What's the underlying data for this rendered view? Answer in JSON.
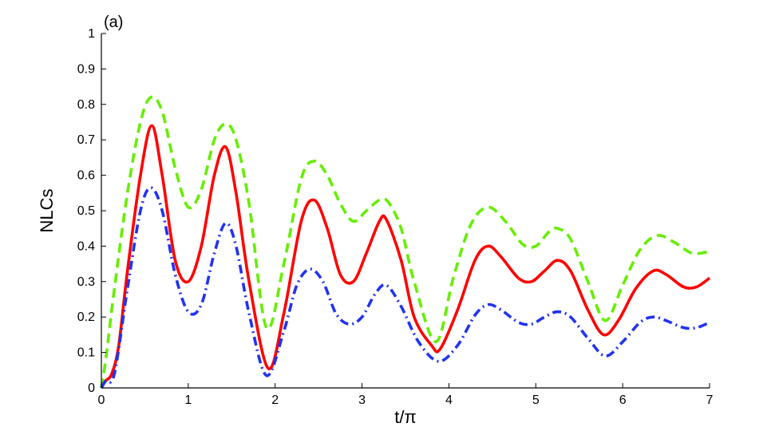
{
  "chart_data": {
    "type": "line",
    "panel_label": "(a)",
    "xlabel": "t/π",
    "ylabel": "NLCs",
    "xlim": [
      0,
      7
    ],
    "ylim": [
      0,
      1
    ],
    "x_ticks": [
      "0",
      "1",
      "2",
      "3",
      "4",
      "5",
      "6",
      "7"
    ],
    "y_ticks": [
      "0",
      "0.1",
      "0.2",
      "0.3",
      "0.4",
      "0.5",
      "0.6",
      "0.7",
      "0.8",
      "0.9",
      "1"
    ],
    "grid": false,
    "legend": "none",
    "series": [
      {
        "color": "#66ee00",
        "style": "dashed",
        "x": [
          0,
          0.05,
          0.15,
          0.3,
          0.45,
          0.57,
          0.7,
          0.85,
          1.0,
          1.15,
          1.3,
          1.43,
          1.55,
          1.7,
          1.9,
          2.1,
          2.3,
          2.45,
          2.6,
          2.75,
          2.9,
          3.05,
          3.2,
          3.3,
          3.45,
          3.6,
          3.85,
          4.05,
          4.25,
          4.45,
          4.65,
          4.85,
          5.0,
          5.15,
          5.25,
          5.4,
          5.6,
          5.8,
          6.0,
          6.2,
          6.4,
          6.6,
          6.8,
          7.0
        ],
        "values": [
          0.0,
          0.08,
          0.28,
          0.55,
          0.75,
          0.82,
          0.78,
          0.62,
          0.51,
          0.56,
          0.7,
          0.745,
          0.7,
          0.52,
          0.17,
          0.35,
          0.59,
          0.64,
          0.6,
          0.52,
          0.47,
          0.5,
          0.53,
          0.525,
          0.45,
          0.3,
          0.13,
          0.31,
          0.46,
          0.51,
          0.47,
          0.405,
          0.4,
          0.44,
          0.45,
          0.42,
          0.3,
          0.19,
          0.29,
          0.39,
          0.43,
          0.41,
          0.38,
          0.385
        ]
      },
      {
        "color": "#ff0000",
        "style": "solid",
        "x": [
          0,
          0.05,
          0.12,
          0.2,
          0.3,
          0.45,
          0.58,
          0.7,
          0.85,
          1.0,
          1.15,
          1.3,
          1.43,
          1.55,
          1.7,
          1.92,
          2.1,
          2.3,
          2.45,
          2.6,
          2.75,
          2.9,
          3.05,
          3.2,
          3.28,
          3.45,
          3.6,
          3.8,
          3.9,
          4.1,
          4.3,
          4.45,
          4.6,
          4.8,
          4.95,
          5.1,
          5.25,
          5.4,
          5.6,
          5.78,
          5.95,
          6.15,
          6.35,
          6.5,
          6.7,
          6.85,
          7.0
        ],
        "values": [
          0.0,
          0.02,
          0.04,
          0.12,
          0.33,
          0.6,
          0.74,
          0.6,
          0.36,
          0.3,
          0.4,
          0.6,
          0.68,
          0.55,
          0.3,
          0.055,
          0.21,
          0.47,
          0.53,
          0.45,
          0.32,
          0.3,
          0.38,
          0.47,
          0.475,
          0.36,
          0.2,
          0.12,
          0.11,
          0.22,
          0.36,
          0.4,
          0.37,
          0.31,
          0.3,
          0.33,
          0.36,
          0.33,
          0.22,
          0.15,
          0.19,
          0.28,
          0.33,
          0.32,
          0.285,
          0.285,
          0.31
        ]
      },
      {
        "color": "#2233ee",
        "style": "dash-dot",
        "x": [
          0,
          0.05,
          0.15,
          0.3,
          0.45,
          0.57,
          0.7,
          0.85,
          1.0,
          1.15,
          1.3,
          1.43,
          1.55,
          1.7,
          1.9,
          2.1,
          2.25,
          2.4,
          2.55,
          2.7,
          2.85,
          3.0,
          3.15,
          3.28,
          3.45,
          3.65,
          3.88,
          4.1,
          4.3,
          4.45,
          4.6,
          4.8,
          4.95,
          5.1,
          5.25,
          5.4,
          5.6,
          5.8,
          6.0,
          6.2,
          6.35,
          6.5,
          6.7,
          6.85,
          7.0
        ],
        "values": [
          0.0,
          0.02,
          0.04,
          0.28,
          0.5,
          0.565,
          0.5,
          0.32,
          0.215,
          0.235,
          0.38,
          0.465,
          0.4,
          0.21,
          0.035,
          0.16,
          0.29,
          0.335,
          0.3,
          0.21,
          0.18,
          0.2,
          0.265,
          0.29,
          0.23,
          0.13,
          0.075,
          0.12,
          0.205,
          0.235,
          0.22,
          0.185,
          0.18,
          0.2,
          0.215,
          0.2,
          0.14,
          0.09,
          0.13,
          0.185,
          0.2,
          0.19,
          0.17,
          0.17,
          0.185
        ]
      }
    ]
  }
}
